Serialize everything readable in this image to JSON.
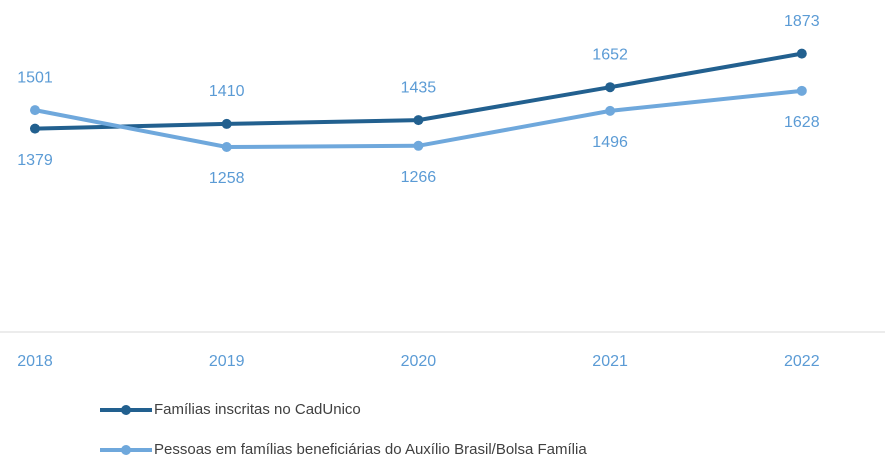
{
  "chart_data": {
    "type": "line",
    "categories": [
      "2018",
      "2019",
      "2020",
      "2021",
      "2022"
    ],
    "series": [
      {
        "name": "Famílias inscritas no CadUnico",
        "color": "#22608f",
        "values": [
          1379,
          1410,
          1435,
          1652,
          1873
        ]
      },
      {
        "name": "Pessoas em famílias beneficiárias do Auxílio Brasil/Bolsa Família",
        "color": "#6fa8dc",
        "values": [
          1501,
          1258,
          1266,
          1496,
          1628
        ]
      }
    ],
    "ylim": [
      0,
      2200
    ]
  }
}
